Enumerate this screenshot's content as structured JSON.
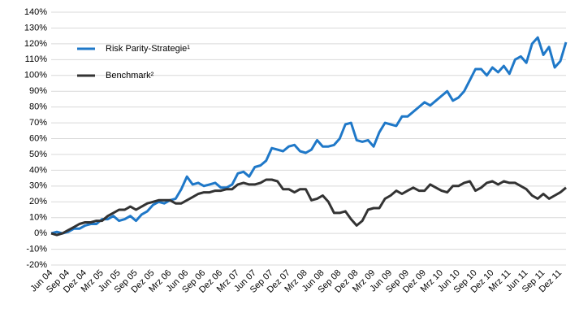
{
  "chart_data": {
    "type": "line",
    "categories": [
      "Jun 04",
      null,
      null,
      "Sep 04",
      null,
      null,
      "Dez 04",
      null,
      null,
      "Mrz 05",
      null,
      null,
      "Jun 05",
      null,
      null,
      "Sep 05",
      null,
      null,
      "Dez 05",
      null,
      null,
      "Mrz 06",
      null,
      null,
      "Jun 06",
      null,
      null,
      "Sep 06",
      null,
      null,
      "Dez 06",
      null,
      null,
      "Mrz 07",
      null,
      null,
      "Jun 07",
      null,
      null,
      "Sep 07",
      null,
      null,
      "Dez 07",
      null,
      null,
      "Mrz 08",
      null,
      null,
      "Jun 08",
      null,
      null,
      "Sep 08",
      null,
      null,
      "Dez 08",
      null,
      null,
      "Mrz 09",
      null,
      null,
      "Jun 09",
      null,
      null,
      "Sep 09",
      null,
      null,
      "Dez 09",
      null,
      null,
      "Mrz 10",
      null,
      null,
      "Jun 10",
      null,
      null,
      "Sep 10",
      null,
      null,
      "Dez 10",
      null,
      null,
      "Mrz 11",
      null,
      null,
      "Jun 11",
      null,
      null,
      "Sep 11",
      null,
      null,
      "Dez 11",
      null
    ],
    "series": [
      {
        "name": "Risk Parity-Strategie¹",
        "color": "#1f78c8",
        "values": [
          0,
          1,
          0,
          1,
          3,
          3,
          5,
          6,
          6,
          9,
          9,
          11,
          8,
          9,
          11,
          8,
          12,
          14,
          18,
          20,
          19,
          21,
          22,
          28,
          36,
          31,
          32,
          30,
          31,
          32,
          29,
          29,
          31,
          38,
          39,
          36,
          42,
          43,
          46,
          54,
          53,
          52,
          55,
          56,
          52,
          51,
          53,
          59,
          55,
          55,
          56,
          60,
          69,
          70,
          59,
          58,
          59,
          55,
          64,
          70,
          69,
          68,
          74,
          74,
          77,
          80,
          83,
          81,
          84,
          87,
          90,
          84,
          86,
          90,
          97,
          104,
          104,
          100,
          105,
          102,
          106,
          101,
          110,
          112,
          108,
          120,
          124,
          113,
          118,
          105,
          109,
          121
        ]
      },
      {
        "name": "Benchmark²",
        "color": "#333333",
        "values": [
          0,
          -1,
          0,
          2,
          4,
          6,
          7,
          7,
          8,
          8,
          11,
          13,
          15,
          15,
          17,
          15,
          17,
          19,
          20,
          21,
          21,
          21,
          19,
          19,
          21,
          23,
          25,
          26,
          26,
          27,
          27,
          28,
          28,
          31,
          32,
          31,
          31,
          32,
          34,
          34,
          33,
          28,
          28,
          26,
          28,
          28,
          21,
          22,
          24,
          20,
          13,
          13,
          14,
          9,
          5,
          8,
          15,
          16,
          16,
          22,
          24,
          27,
          25,
          27,
          29,
          27,
          27,
          31,
          29,
          27,
          26,
          30,
          30,
          32,
          33,
          27,
          29,
          32,
          33,
          31,
          33,
          32,
          32,
          30,
          28,
          24,
          22,
          25,
          22,
          24,
          26,
          29
        ]
      }
    ],
    "ylim": [
      -20,
      140
    ],
    "yticks": [
      {
        "value": -20,
        "label": "-20%"
      },
      {
        "value": -10,
        "label": "-10%"
      },
      {
        "value": 0,
        "label": "0%"
      },
      {
        "value": 10,
        "label": "10%"
      },
      {
        "value": 20,
        "label": "20%"
      },
      {
        "value": 30,
        "label": "30%"
      },
      {
        "value": 40,
        "label": "40%"
      },
      {
        "value": 50,
        "label": "50%"
      },
      {
        "value": 60,
        "label": "60%"
      },
      {
        "value": 70,
        "label": "70%"
      },
      {
        "value": 80,
        "label": "80%"
      },
      {
        "value": 90,
        "label": "90%"
      },
      {
        "value": 100,
        "label": "100%"
      },
      {
        "value": 110,
        "label": "110%"
      },
      {
        "value": 120,
        "label": "120%"
      },
      {
        "value": 130,
        "label": "130%"
      },
      {
        "value": 140,
        "label": "140%"
      }
    ],
    "grid": true,
    "legend": "upper left"
  }
}
